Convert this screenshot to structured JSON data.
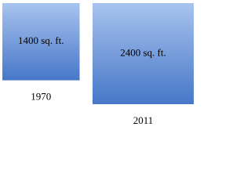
{
  "chart_data": {
    "type": "square",
    "categories": [
      "1970",
      "2011"
    ],
    "values": [
      1400,
      2400
    ],
    "value_labels": [
      "1400 sq. ft.",
      "2400 sq. ft."
    ]
  }
}
